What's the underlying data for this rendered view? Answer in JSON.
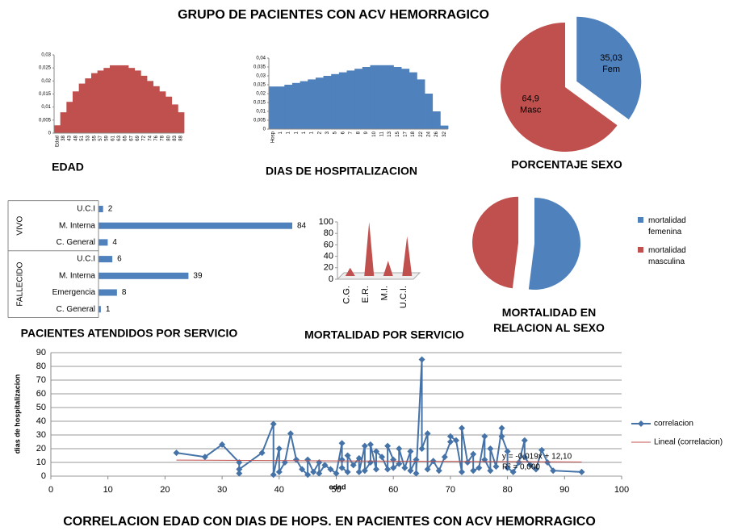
{
  "title": "GRUPO DE PACIENTES CON ACV HEMORRAGICO",
  "chart_data": [
    {
      "type": "bar",
      "title": "EDAD",
      "color": "#c0504d",
      "categories": [
        "Edad",
        "38",
        "43",
        "48",
        "51",
        "53",
        "55",
        "57",
        "59",
        "61",
        "63",
        "65",
        "67",
        "69",
        "72",
        "74",
        "76",
        "78",
        "80",
        "83",
        "88"
      ],
      "values": [
        0.003,
        0.008,
        0.012,
        0.016,
        0.019,
        0.021,
        0.023,
        0.024,
        0.025,
        0.026,
        0.026,
        0.026,
        0.025,
        0.024,
        0.022,
        0.02,
        0.018,
        0.016,
        0.014,
        0.011,
        0.008
      ],
      "ylim": [
        0,
        0.03
      ],
      "yticks": [
        0,
        {
          "value": 0.005,
          "label": "0,005"
        },
        {
          "value": 0.01,
          "label": "0,01"
        },
        {
          "value": 0.015,
          "label": "0,015"
        },
        {
          "value": 0.02,
          "label": "0,02"
        },
        {
          "value": 0.025,
          "label": "0,025"
        },
        {
          "value": 0.03,
          "label": "0,03"
        }
      ],
      "grid": false
    },
    {
      "type": "bar",
      "title": "DIAS DE HOSPITALIZACION",
      "color": "#4f81bd",
      "categories": [
        "Hosp",
        "1",
        "1",
        "1",
        "1",
        "1",
        "2",
        "3",
        "5",
        "6",
        "7",
        "8",
        "9",
        "10",
        "11",
        "13",
        "15",
        "17",
        "18",
        "22",
        "24",
        "26",
        "32"
      ],
      "values": [
        0.024,
        0.024,
        0.025,
        0.026,
        0.027,
        0.028,
        0.029,
        0.03,
        0.031,
        0.032,
        0.033,
        0.034,
        0.035,
        0.036,
        0.036,
        0.036,
        0.035,
        0.034,
        0.032,
        0.028,
        0.02,
        0.01,
        0.002
      ],
      "ylim": [
        0,
        0.04
      ],
      "yticks": [
        0,
        {
          "value": 0.005,
          "label": "0,005"
        },
        {
          "value": 0.01,
          "label": "0,01"
        },
        {
          "value": 0.015,
          "label": "0,015"
        },
        {
          "value": 0.02,
          "label": "0,02"
        },
        {
          "value": 0.025,
          "label": "0,025"
        },
        {
          "value": 0.03,
          "label": "0,03"
        },
        {
          "value": 0.035,
          "label": "0,035"
        },
        {
          "value": 0.04,
          "label": "0,04"
        }
      ],
      "grid": false
    },
    {
      "type": "pie",
      "title": "PORCENTAJE SEXO",
      "categories": [
        "Fem",
        "Masc"
      ],
      "values": [
        35.03,
        64.9
      ],
      "value_labels": [
        "35,03",
        "64,9"
      ],
      "colors": [
        "#4f81bd",
        "#c0504d"
      ]
    },
    {
      "type": "barh",
      "title": "PACIENTES ATENDIDOS POR SERVICIO",
      "color": "#4f81bd",
      "groups": [
        {
          "name": "VIVO",
          "categories": [
            "U.C.I",
            "M. Interna",
            "C. General"
          ],
          "values": [
            2,
            84,
            4
          ]
        },
        {
          "name": "FALLECIDO",
          "categories": [
            "U.C.I",
            "M. Interna",
            "Emergencia",
            "C. General"
          ],
          "values": [
            6,
            39,
            8,
            1
          ]
        }
      ]
    },
    {
      "type": "cone",
      "title": "MORTALIDAD POR SERVICIO",
      "color": "#c0504d",
      "categories": [
        "C.G.",
        "E.R.",
        "M.I.",
        "U.C.I."
      ],
      "values": [
        20,
        100,
        32,
        75
      ],
      "ylim": [
        0,
        100
      ],
      "yticks": [
        0,
        20,
        40,
        60,
        80,
        100
      ],
      "grid": false
    },
    {
      "type": "pie",
      "title": "MORTALIDAD EN RELACION AL SEXO",
      "legend": "right",
      "categories": [
        "mortalidad femenina",
        "mortalidad masculina"
      ],
      "values": [
        52,
        48
      ],
      "colors": [
        "#4f81bd",
        "#c0504d"
      ]
    },
    {
      "type": "line",
      "title": "CORRELACION EDAD CON DIAS DE HOPS. EN PACIENTES CON ACV HEMORRAGICO",
      "xlabel": "edad",
      "ylabel": "dias de hospitalizacion",
      "xlim": [
        0,
        100
      ],
      "xticks": [
        0,
        10,
        20,
        30,
        40,
        50,
        60,
        70,
        80,
        90,
        100
      ],
      "ylim": [
        0,
        90
      ],
      "yticks": [
        0,
        10,
        20,
        30,
        40,
        50,
        60,
        70,
        80,
        90
      ],
      "grid": true,
      "legend": "right",
      "annotations": [
        "y = -0,019x + 12,10",
        "R² = 0,000"
      ],
      "series": [
        {
          "name": "correlacion",
          "color": "#4572a7",
          "x": [
            22,
            27,
            30,
            33,
            33,
            33,
            37,
            39,
            39,
            40,
            40,
            41,
            42,
            43,
            44,
            45,
            45,
            46,
            47,
            47,
            48,
            49,
            50,
            51,
            51,
            51,
            52,
            52,
            53,
            54,
            54,
            55,
            55,
            56,
            56,
            57,
            57,
            58,
            59,
            59,
            60,
            60,
            61,
            61,
            62,
            63,
            63,
            64,
            64,
            65,
            65,
            66,
            66,
            67,
            68,
            69,
            70,
            70,
            71,
            72,
            72,
            73,
            74,
            74,
            75,
            76,
            76,
            77,
            77,
            78,
            79,
            79,
            80,
            80,
            81,
            82,
            83,
            83,
            84,
            85,
            86,
            87,
            88,
            93
          ],
          "values": [
            17,
            14,
            23,
            10,
            2,
            5,
            17,
            38,
            1,
            20,
            3,
            10,
            31,
            12,
            5,
            1,
            12,
            3,
            10,
            2,
            8,
            5,
            2,
            24,
            12,
            6,
            3,
            15,
            8,
            13,
            3,
            22,
            4,
            10,
            23,
            5,
            18,
            14,
            5,
            22,
            12,
            6,
            9,
            20,
            6,
            18,
            4,
            12,
            2,
            85,
            20,
            31,
            5,
            11,
            4,
            14,
            25,
            29,
            26,
            3,
            35,
            10,
            16,
            4,
            6,
            29,
            12,
            4,
            20,
            7,
            35,
            29,
            18,
            6,
            3,
            10,
            26,
            14,
            8,
            5,
            19,
            10,
            4,
            3
          ]
        },
        {
          "name": "Lineal (correlacion)",
          "color": "#c0504d",
          "x": [
            22,
            93
          ],
          "values": [
            11.68,
            10.33
          ]
        }
      ]
    }
  ]
}
